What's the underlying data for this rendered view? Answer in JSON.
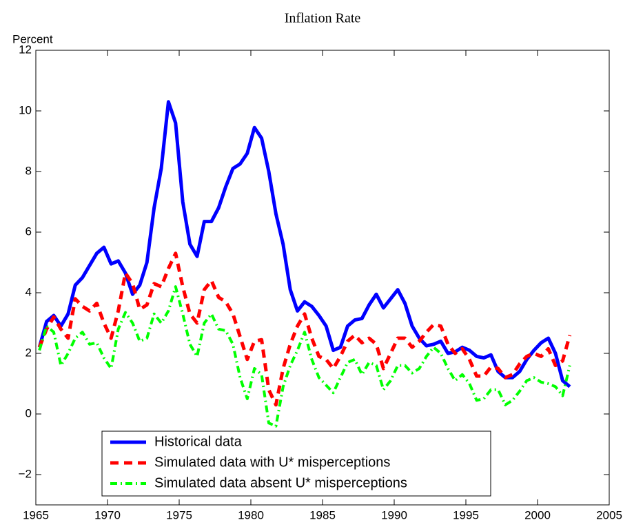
{
  "chart_data": {
    "type": "line",
    "title": "Inflation Rate",
    "ylabel": "Percent",
    "x": [
      1965.25,
      1965.75,
      1966.25,
      1966.75,
      1967.25,
      1967.75,
      1968.25,
      1968.75,
      1969.25,
      1969.75,
      1970.25,
      1970.75,
      1971.25,
      1971.75,
      1972.25,
      1972.75,
      1973.25,
      1973.75,
      1974.25,
      1974.75,
      1975.25,
      1975.75,
      1976.25,
      1976.75,
      1977.25,
      1977.75,
      1978.25,
      1978.75,
      1979.25,
      1979.75,
      1980.25,
      1980.75,
      1981.25,
      1981.75,
      1982.25,
      1982.75,
      1983.25,
      1983.75,
      1984.25,
      1984.75,
      1985.25,
      1985.75,
      1986.25,
      1986.75,
      1987.25,
      1987.75,
      1988.25,
      1988.75,
      1989.25,
      1989.75,
      1990.25,
      1990.75,
      1991.25,
      1991.75,
      1992.25,
      1992.75,
      1993.25,
      1993.75,
      1994.25,
      1994.75,
      1995.25,
      1995.75,
      1996.25,
      1996.75,
      1997.25,
      1997.75,
      1998.25,
      1998.75,
      1999.25,
      1999.75,
      2000.25,
      2000.75,
      2001.25,
      2001.75,
      2002.25
    ],
    "series": [
      {
        "name": "Historical data",
        "color": "#0000ff",
        "dash": "solid",
        "values": [
          2.2,
          3.05,
          3.25,
          2.9,
          3.3,
          4.25,
          4.5,
          4.9,
          5.3,
          5.5,
          4.95,
          5.05,
          4.65,
          3.95,
          4.25,
          5.0,
          6.8,
          8.1,
          10.3,
          9.6,
          7.0,
          5.6,
          5.2,
          6.35,
          6.35,
          6.8,
          7.5,
          8.1,
          8.25,
          8.6,
          9.45,
          9.1,
          8.0,
          6.6,
          5.6,
          4.1,
          3.4,
          3.7,
          3.55,
          3.25,
          2.9,
          2.1,
          2.2,
          2.9,
          3.1,
          3.15,
          3.6,
          3.95,
          3.5,
          3.8,
          4.1,
          3.65,
          2.9,
          2.5,
          2.25,
          2.3,
          2.4,
          2.0,
          2.05,
          2.2,
          2.1,
          1.9,
          1.85,
          1.95,
          1.4,
          1.2,
          1.2,
          1.4,
          1.8,
          2.1,
          2.35,
          2.5,
          2.0,
          1.1,
          0.9
        ]
      },
      {
        "name": "Simulated data with U* misperceptions",
        "color": "#ff0000",
        "dash": "dashed",
        "values": [
          2.2,
          2.8,
          3.2,
          2.8,
          2.5,
          3.8,
          3.55,
          3.4,
          3.65,
          3.0,
          2.5,
          3.4,
          4.65,
          4.3,
          3.45,
          3.6,
          4.3,
          4.2,
          4.8,
          5.3,
          4.2,
          3.3,
          3.0,
          4.1,
          4.4,
          3.85,
          3.7,
          3.3,
          2.55,
          1.8,
          2.4,
          2.45,
          0.8,
          0.3,
          1.5,
          2.3,
          2.9,
          3.3,
          2.5,
          1.9,
          1.8,
          1.5,
          1.9,
          2.4,
          2.6,
          2.35,
          2.5,
          2.3,
          1.5,
          2.0,
          2.5,
          2.5,
          2.2,
          2.4,
          2.7,
          2.95,
          2.9,
          2.3,
          2.0,
          2.15,
          1.8,
          1.25,
          1.25,
          1.55,
          1.5,
          1.2,
          1.3,
          1.65,
          1.9,
          2.0,
          1.9,
          2.15,
          1.6,
          1.75,
          2.6
        ]
      },
      {
        "name": "Simulated data absent U* misperceptions",
        "color": "#00ff00",
        "dash": "dashdot",
        "values": [
          2.1,
          2.9,
          2.7,
          1.6,
          2.0,
          2.5,
          2.7,
          2.3,
          2.35,
          1.85,
          1.5,
          2.8,
          3.35,
          3.0,
          2.4,
          2.5,
          3.3,
          3.0,
          3.4,
          4.2,
          3.3,
          2.3,
          1.9,
          3.0,
          3.3,
          2.8,
          2.75,
          2.3,
          1.2,
          0.5,
          1.5,
          1.3,
          -0.3,
          -0.4,
          0.9,
          1.6,
          2.1,
          2.7,
          1.8,
          1.2,
          0.95,
          0.7,
          1.2,
          1.7,
          1.8,
          1.3,
          1.7,
          1.6,
          0.8,
          1.1,
          1.6,
          1.6,
          1.35,
          1.5,
          1.9,
          2.2,
          2.0,
          1.5,
          1.1,
          1.3,
          1.0,
          0.45,
          0.5,
          0.8,
          0.8,
          0.3,
          0.45,
          0.75,
          1.1,
          1.2,
          1.05,
          1.0,
          0.9,
          0.6,
          1.6
        ]
      }
    ],
    "xlim": [
      1965,
      2005
    ],
    "xticks": [
      1965,
      1970,
      1975,
      1980,
      1985,
      1990,
      1995,
      2000,
      2005
    ],
    "ylim": [
      -3,
      12
    ],
    "yticks": [
      {
        "value": -2,
        "label": "−2"
      },
      0,
      2,
      4,
      6,
      8,
      10,
      12
    ],
    "grid": false,
    "legend": "lower left"
  }
}
